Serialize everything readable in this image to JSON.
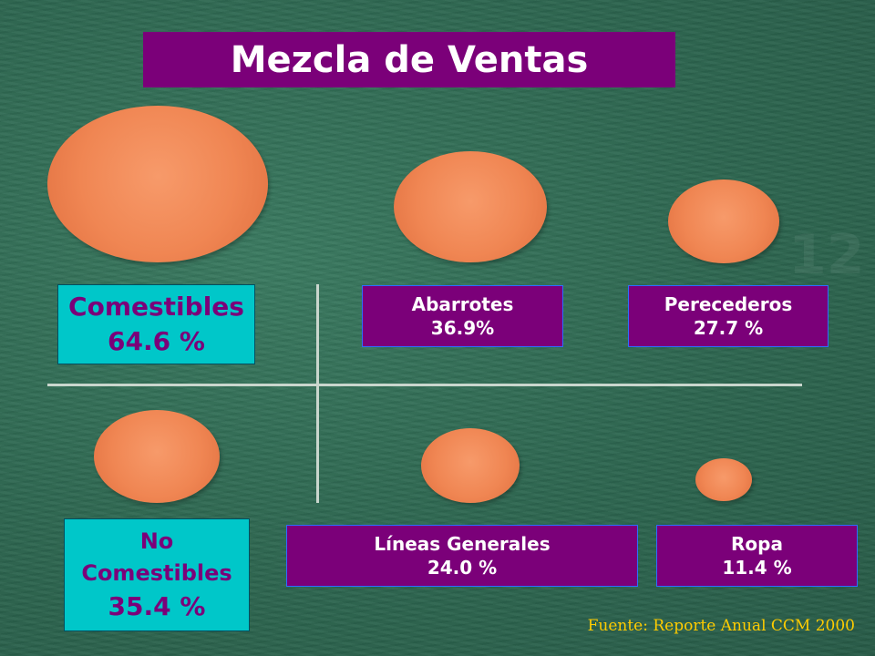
{
  "title": "Mezcla de Ventas",
  "comestibles": {
    "label": "Comestibles",
    "value": "64.6 %"
  },
  "no_comestibles": {
    "line1": "No",
    "line2": "Comestibles",
    "value": "35.4 %"
  },
  "abarrotes": {
    "label": "Abarrotes",
    "value": "36.9%"
  },
  "perecederos": {
    "label": "Perecederos",
    "value": "27.7 %"
  },
  "lineas_generales": {
    "label": "Líneas Generales",
    "value": "24.0 %"
  },
  "ropa": {
    "label": "Ropa",
    "value": "11.4 %"
  },
  "source": "Fuente: Reporte Anual CCM 2000",
  "colors": {
    "title_bg": "#7b0079",
    "cyan": "#00c7c9",
    "orange": "#f08653",
    "background": "#2f6b53",
    "source_text": "#ffcc00"
  }
}
